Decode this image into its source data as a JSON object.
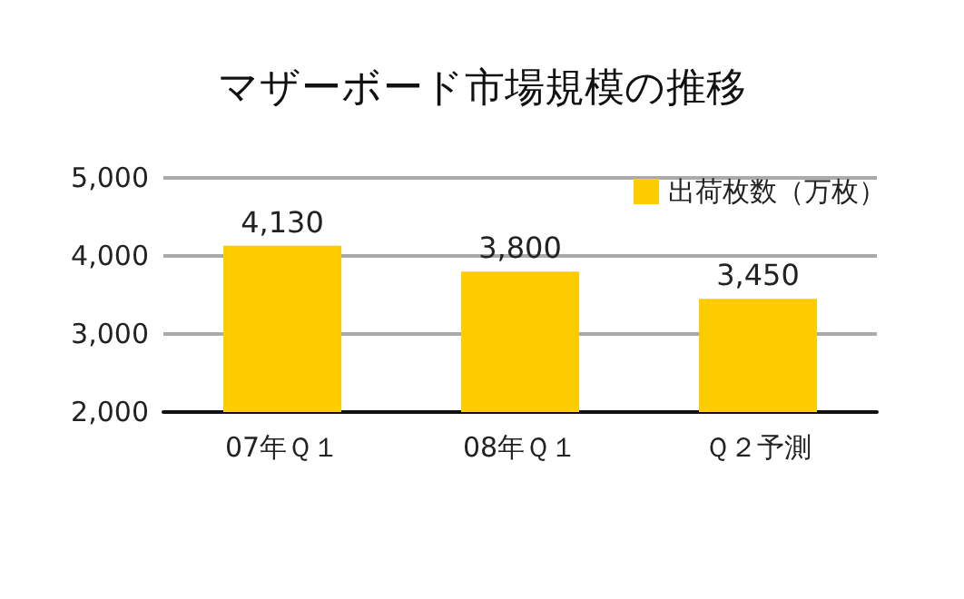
{
  "chart_data": {
    "type": "bar",
    "title": "マザーボード市場規模の推移",
    "categories": [
      "07年Ｑ１",
      "08年Ｑ１",
      "Ｑ２予測"
    ],
    "series": [
      {
        "name": "出荷枚数（万枚）",
        "color": "#ffcc00",
        "values": [
          4130,
          3800,
          3450
        ],
        "value_labels": [
          "4,130",
          "3,800",
          "3,450"
        ]
      }
    ],
    "ylim": [
      2000,
      5000
    ],
    "yticks": [
      {
        "value": 2000,
        "label": "2,000"
      },
      {
        "value": 3000,
        "label": "3,000"
      },
      {
        "value": 4000,
        "label": "4,000"
      },
      {
        "value": 5000,
        "label": "5,000"
      }
    ],
    "grid": "y",
    "legend": "top right"
  }
}
